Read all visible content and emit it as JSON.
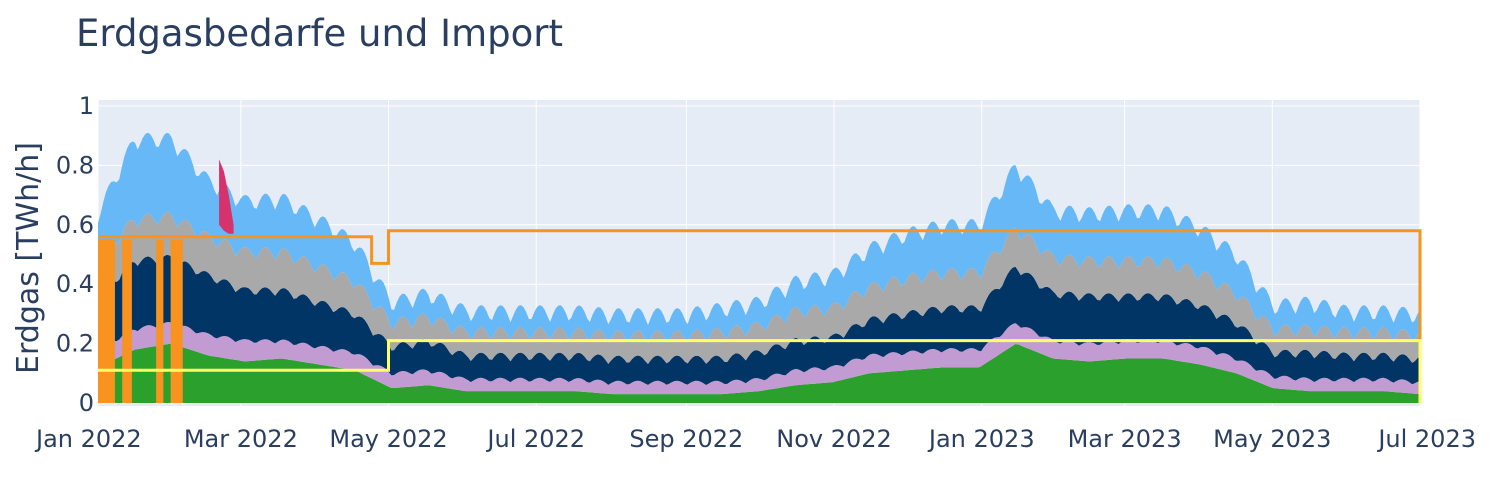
{
  "chart_data": {
    "type": "area",
    "title": "Erdgasbedarfe und Import",
    "xlabel": "",
    "ylabel": "Erdgas [TWh/h]",
    "xlim": [
      "2022-01-01",
      "2023-07-01"
    ],
    "ylim": [
      -0.01,
      1.02
    ],
    "grid": true,
    "legend": "none",
    "x_ticks": [
      {
        "date": "2022-01-01",
        "label": "Jan 2022"
      },
      {
        "date": "2022-03-01",
        "label": "Mar 2022"
      },
      {
        "date": "2022-05-01",
        "label": "May 2022"
      },
      {
        "date": "2022-07-01",
        "label": "Jul 2022"
      },
      {
        "date": "2022-09-01",
        "label": "Sep 2022"
      },
      {
        "date": "2022-11-01",
        "label": "Nov 2022"
      },
      {
        "date": "2023-01-01",
        "label": "Jan 2023"
      },
      {
        "date": "2023-03-01",
        "label": "Mar 2023"
      },
      {
        "date": "2023-05-01",
        "label": "May 2023"
      },
      {
        "date": "2023-07-01",
        "label": "Jul 2023"
      }
    ],
    "y_ticks": [
      {
        "value": 0,
        "label": "0"
      },
      {
        "value": 0.2,
        "label": "0.2"
      },
      {
        "value": 0.4,
        "label": "0.4"
      },
      {
        "value": 0.6,
        "label": "0.6"
      },
      {
        "value": 0.8,
        "label": "0.8"
      },
      {
        "value": 1,
        "label": "1"
      }
    ],
    "x": [
      "2022-01-01",
      "2022-01-15",
      "2022-02-01",
      "2022-02-15",
      "2022-03-01",
      "2022-03-15",
      "2022-04-01",
      "2022-04-15",
      "2022-05-01",
      "2022-05-15",
      "2022-06-01",
      "2022-06-15",
      "2022-07-01",
      "2022-07-15",
      "2022-08-01",
      "2022-08-15",
      "2022-09-01",
      "2022-09-15",
      "2022-10-01",
      "2022-10-15",
      "2022-11-01",
      "2022-11-15",
      "2022-12-01",
      "2022-12-15",
      "2023-01-01",
      "2023-01-15",
      "2023-02-01",
      "2023-02-15",
      "2023-03-01",
      "2023-03-15",
      "2023-04-01",
      "2023-04-15",
      "2023-05-01",
      "2023-05-15",
      "2023-06-01",
      "2023-06-15",
      "2023-07-01"
    ],
    "stacked_series": [
      {
        "color": "#2ca02c",
        "values": [
          0.12,
          0.18,
          0.2,
          0.16,
          0.14,
          0.15,
          0.13,
          0.11,
          0.05,
          0.06,
          0.04,
          0.04,
          0.04,
          0.04,
          0.03,
          0.03,
          0.03,
          0.03,
          0.04,
          0.06,
          0.07,
          0.1,
          0.11,
          0.12,
          0.12,
          0.2,
          0.15,
          0.14,
          0.15,
          0.15,
          0.13,
          0.1,
          0.05,
          0.04,
          0.04,
          0.04,
          0.03
        ]
      },
      {
        "color": "#c39bd3",
        "values": [
          0.05,
          0.06,
          0.06,
          0.06,
          0.06,
          0.05,
          0.05,
          0.05,
          0.04,
          0.04,
          0.03,
          0.03,
          0.03,
          0.03,
          0.03,
          0.03,
          0.03,
          0.03,
          0.03,
          0.04,
          0.04,
          0.05,
          0.05,
          0.05,
          0.05,
          0.06,
          0.05,
          0.05,
          0.05,
          0.05,
          0.05,
          0.04,
          0.03,
          0.03,
          0.03,
          0.03,
          0.03
        ]
      },
      {
        "color": "#003566",
        "values": [
          0.17,
          0.22,
          0.21,
          0.19,
          0.16,
          0.16,
          0.14,
          0.12,
          0.08,
          0.09,
          0.07,
          0.07,
          0.07,
          0.07,
          0.07,
          0.07,
          0.07,
          0.07,
          0.08,
          0.09,
          0.09,
          0.11,
          0.12,
          0.13,
          0.13,
          0.18,
          0.15,
          0.15,
          0.14,
          0.14,
          0.13,
          0.11,
          0.07,
          0.08,
          0.07,
          0.07,
          0.07
        ]
      },
      {
        "color": "#a9a9a9",
        "values": [
          0.12,
          0.13,
          0.13,
          0.12,
          0.12,
          0.12,
          0.11,
          0.1,
          0.07,
          0.07,
          0.07,
          0.07,
          0.07,
          0.07,
          0.07,
          0.07,
          0.07,
          0.08,
          0.08,
          0.09,
          0.09,
          0.1,
          0.11,
          0.11,
          0.11,
          0.12,
          0.11,
          0.11,
          0.11,
          0.11,
          0.1,
          0.09,
          0.07,
          0.07,
          0.07,
          0.07,
          0.07
        ]
      },
      {
        "color": "#66b8f6",
        "values": [
          0.14,
          0.26,
          0.25,
          0.18,
          0.16,
          0.17,
          0.15,
          0.12,
          0.06,
          0.07,
          0.06,
          0.06,
          0.06,
          0.06,
          0.06,
          0.06,
          0.06,
          0.07,
          0.07,
          0.09,
          0.1,
          0.12,
          0.14,
          0.15,
          0.15,
          0.2,
          0.15,
          0.15,
          0.16,
          0.16,
          0.14,
          0.12,
          0.07,
          0.08,
          0.06,
          0.06,
          0.06
        ]
      }
    ],
    "spike_series": {
      "color": "#d6336c",
      "x": [
        "2022-02-20",
        "2022-02-22",
        "2022-02-24",
        "2022-02-26"
      ],
      "base": [
        0.6,
        0.58,
        0.57,
        0.57
      ],
      "top": [
        0.82,
        0.78,
        0.7,
        0.6
      ]
    },
    "step_lines": [
      {
        "color": "#f7931e",
        "width": 3,
        "points": [
          [
            "2022-01-01",
            0.56
          ],
          [
            "2022-04-24",
            0.56
          ],
          [
            "2022-04-24",
            0.47
          ],
          [
            "2022-05-01",
            0.47
          ],
          [
            "2022-05-01",
            0.58
          ],
          [
            "2023-07-01",
            0.58
          ],
          [
            "2023-07-01",
            0
          ]
        ]
      },
      {
        "color": "#ffff66",
        "width": 3,
        "points": [
          [
            "2022-01-01",
            0.11
          ],
          [
            "2022-05-01",
            0.11
          ],
          [
            "2022-05-01",
            0.21
          ],
          [
            "2023-07-01",
            0.21
          ],
          [
            "2023-07-01",
            0
          ]
        ]
      }
    ],
    "import_bars": {
      "color": "#f7931e",
      "width": 3,
      "segments": [
        {
          "from": "2022-01-01",
          "to": "2022-01-08",
          "value": 0.55
        },
        {
          "from": "2022-01-11",
          "to": "2022-01-15",
          "value": 0.55
        },
        {
          "from": "2022-01-25",
          "to": "2022-01-28",
          "value": 0.55
        },
        {
          "from": "2022-01-31",
          "to": "2022-02-05",
          "value": 0.55
        }
      ]
    }
  }
}
